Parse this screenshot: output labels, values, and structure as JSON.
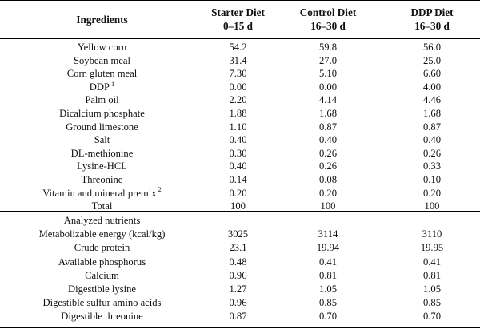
{
  "header": {
    "col_ingredients": "Ingredients",
    "col_starter_line1": "Starter Diet",
    "col_starter_line2": "0–15 d",
    "col_control_line1": "Control Diet",
    "col_control_line2": "16–30 d",
    "col_ddp_line1": "DDP Diet",
    "col_ddp_line2": "16–30 d"
  },
  "ingredients": [
    {
      "name": "Yellow corn",
      "sup": "",
      "starter": "54.2",
      "control": "59.8",
      "ddp": "56.0"
    },
    {
      "name": "Soybean meal",
      "sup": "",
      "starter": "31.4",
      "control": "27.0",
      "ddp": "25.0"
    },
    {
      "name": "Corn gluten meal",
      "sup": "",
      "starter": "7.30",
      "control": "5.10",
      "ddp": "6.60"
    },
    {
      "name": "DDP",
      "sup": "1",
      "starter": "0.00",
      "control": "0.00",
      "ddp": "4.00"
    },
    {
      "name": "Palm oil",
      "sup": "",
      "starter": "2.20",
      "control": "4.14",
      "ddp": "4.46"
    },
    {
      "name": "Dicalcium phosphate",
      "sup": "",
      "starter": "1.88",
      "control": "1.68",
      "ddp": "1.68"
    },
    {
      "name": "Ground limestone",
      "sup": "",
      "starter": "1.10",
      "control": "0.87",
      "ddp": "0.87"
    },
    {
      "name": "Salt",
      "sup": "",
      "starter": "0.40",
      "control": "0.40",
      "ddp": "0.40"
    },
    {
      "name": "DL-methionine",
      "sup": "",
      "starter": "0.30",
      "control": "0.26",
      "ddp": "0.26"
    },
    {
      "name": "Lysine-HCL",
      "sup": "",
      "starter": "0.40",
      "control": "0.26",
      "ddp": "0.33"
    },
    {
      "name": "Threonine",
      "sup": "",
      "starter": "0.14",
      "control": "0.08",
      "ddp": "0.10"
    },
    {
      "name": "Vitamin and mineral premix",
      "sup": "2",
      "starter": "0.20",
      "control": "0.20",
      "ddp": "0.20"
    },
    {
      "name": "Total",
      "sup": "",
      "starter": "100",
      "control": "100",
      "ddp": "100"
    }
  ],
  "nutrients": [
    {
      "name": "Analyzed nutrients",
      "sup": "",
      "starter": "",
      "control": "",
      "ddp": ""
    },
    {
      "name": "Metabolizable energy (kcal/kg)",
      "sup": "",
      "starter": "3025",
      "control": "3114",
      "ddp": "3110"
    },
    {
      "name": "Crude protein",
      "sup": "",
      "starter": "23.1",
      "control": "19.94",
      "ddp": "19.95"
    },
    {
      "name": "Available phosphorus",
      "sup": "",
      "starter": "0.48",
      "control": "0.41",
      "ddp": "0.41"
    },
    {
      "name": "Calcium",
      "sup": "",
      "starter": "0.96",
      "control": "0.81",
      "ddp": "0.81"
    },
    {
      "name": "Digestible lysine",
      "sup": "",
      "starter": "1.27",
      "control": "1.05",
      "ddp": "1.05"
    },
    {
      "name": "Digestible sulfur amino acids",
      "sup": "",
      "starter": "0.96",
      "control": "0.85",
      "ddp": "0.85"
    },
    {
      "name": "Digestible threonine",
      "sup": "",
      "starter": "0.87",
      "control": "0.70",
      "ddp": "0.70"
    }
  ]
}
